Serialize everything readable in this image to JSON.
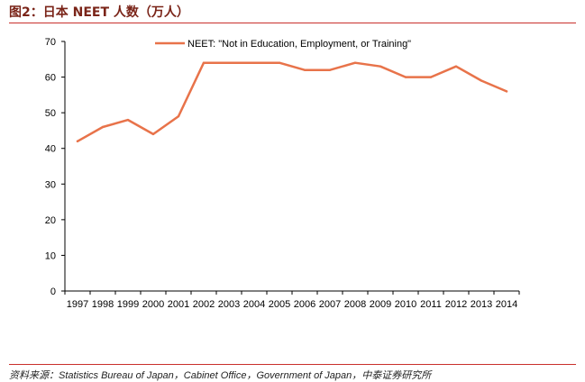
{
  "figure": {
    "title": "图2：日本 NEET 人数（万人）",
    "source": "资料来源：Statistics Bureau of Japan，Cabinet Office，Government of Japan，中泰证券研究所"
  },
  "colors": {
    "title": "#7a2418",
    "rule": "#c9302c",
    "series": "#e8734a"
  },
  "chart_data": {
    "type": "line",
    "title": "",
    "xlabel": "",
    "ylabel": "",
    "ylim": [
      0,
      70
    ],
    "yticks": [
      0,
      10,
      20,
      30,
      40,
      50,
      60,
      70
    ],
    "grid": false,
    "legend_position": "top-center",
    "x": [
      "1997",
      "1998",
      "1999",
      "2000",
      "2001",
      "2002",
      "2003",
      "2004",
      "2005",
      "2006",
      "2007",
      "2008",
      "2009",
      "2010",
      "2011",
      "2012",
      "2013",
      "2014"
    ],
    "series": [
      {
        "name": "NEET: \"Not in Education, Employment, or Training\"",
        "values": [
          42,
          46,
          48,
          44,
          49,
          64,
          64,
          64,
          64,
          62,
          62,
          64,
          63,
          60,
          60,
          63,
          59,
          56
        ]
      }
    ]
  }
}
